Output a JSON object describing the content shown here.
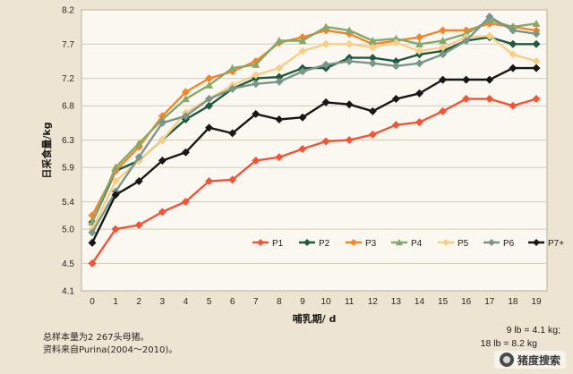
{
  "chart_data": {
    "type": "line",
    "xlabel": "哺乳期/ d",
    "ylabel": "日采食量/kg",
    "x": [
      0,
      1,
      2,
      3,
      4,
      5,
      6,
      7,
      8,
      9,
      10,
      11,
      12,
      13,
      14,
      15,
      16,
      17,
      18,
      19
    ],
    "xlim": [
      0,
      19
    ],
    "ylim": [
      4.1,
      8.2
    ],
    "y_ticks": [
      4.1,
      4.5,
      5.0,
      5.4,
      5.9,
      6.3,
      6.8,
      7.2,
      7.7,
      8.2
    ],
    "grid": "horizontal",
    "legend_position": "bottom-right",
    "series": [
      {
        "name": "P1",
        "color": "#f0553a",
        "marker": "diamond",
        "values": [
          4.5,
          5.0,
          5.06,
          5.25,
          5.4,
          5.7,
          5.72,
          6.0,
          6.05,
          6.17,
          6.28,
          6.3,
          6.38,
          6.52,
          6.56,
          6.72,
          6.9,
          6.9,
          6.8,
          6.9
        ]
      },
      {
        "name": "P2",
        "color": "#1f5a3c",
        "marker": "diamond",
        "values": [
          5.1,
          5.85,
          6.0,
          6.3,
          6.6,
          6.8,
          7.05,
          7.2,
          7.22,
          7.35,
          7.35,
          7.5,
          7.5,
          7.45,
          7.55,
          7.6,
          7.75,
          7.8,
          7.7,
          7.7
        ]
      },
      {
        "name": "P3",
        "color": "#f2852a",
        "marker": "diamond",
        "values": [
          5.2,
          5.85,
          6.2,
          6.65,
          7.0,
          7.2,
          7.3,
          7.45,
          7.72,
          7.8,
          7.9,
          7.85,
          7.7,
          7.75,
          7.8,
          7.9,
          7.9,
          8.0,
          7.95,
          7.9
        ]
      },
      {
        "name": "P4",
        "color": "#86a86a",
        "marker": "triangle",
        "values": [
          5.1,
          5.9,
          6.25,
          6.6,
          6.9,
          7.1,
          7.35,
          7.4,
          7.75,
          7.75,
          7.95,
          7.9,
          7.75,
          7.78,
          7.7,
          7.75,
          7.85,
          8.05,
          7.95,
          8.0
        ]
      },
      {
        "name": "P5",
        "color": "#f5cf8a",
        "marker": "diamond",
        "values": [
          5.0,
          5.7,
          6.0,
          6.3,
          6.7,
          6.9,
          7.1,
          7.25,
          7.35,
          7.6,
          7.7,
          7.7,
          7.65,
          7.72,
          7.6,
          7.65,
          7.8,
          7.82,
          7.55,
          7.45
        ]
      },
      {
        "name": "P6",
        "color": "#7b9688",
        "marker": "diamond",
        "values": [
          4.95,
          5.55,
          6.05,
          6.55,
          6.65,
          6.9,
          7.05,
          7.12,
          7.15,
          7.3,
          7.4,
          7.45,
          7.42,
          7.38,
          7.42,
          7.55,
          7.75,
          8.1,
          7.9,
          7.85
        ]
      },
      {
        "name": "P7+",
        "color": "#171717",
        "marker": "diamond",
        "values": [
          4.8,
          5.5,
          5.7,
          6.0,
          6.12,
          6.48,
          6.4,
          6.68,
          6.6,
          6.63,
          6.85,
          6.82,
          6.72,
          6.9,
          6.98,
          7.18,
          7.18,
          7.18,
          7.35,
          7.35
        ]
      }
    ]
  },
  "notes": {
    "left_line1": "总样本量为2 267头母猪。",
    "left_line2": "资料来自Purina(2004～2010)。",
    "right_line1": "9 lb = 4.1 kg;",
    "right_line2": "18 lb = 8.2 kg"
  },
  "watermark": {
    "icon": "paw-logo-icon",
    "text": "猪度搜索"
  },
  "colors": {
    "background": "#ede4d1",
    "plot_background": "#fbf8f1",
    "grid": "#d3cbba"
  }
}
